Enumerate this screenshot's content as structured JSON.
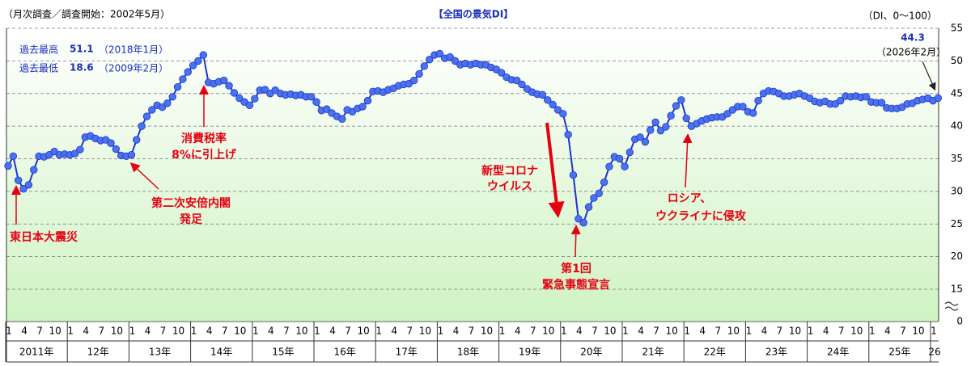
{
  "chart_data": {
    "type": "line",
    "subtitle": "（月次調査／調査開始：2002年5月）",
    "title": "【全国の景気DI】",
    "unit_label": "（DI、0～100）",
    "categories": [
      "2011-01",
      "2011-02",
      "2011-03",
      "2011-04",
      "2011-05",
      "2011-06",
      "2011-07",
      "2011-08",
      "2011-09",
      "2011-10",
      "2011-11",
      "2011-12",
      "2012-01",
      "2012-02",
      "2012-03",
      "2012-04",
      "2012-05",
      "2012-06",
      "2012-07",
      "2012-08",
      "2012-09",
      "2012-10",
      "2012-11",
      "2012-12",
      "2013-01",
      "2013-02",
      "2013-03",
      "2013-04",
      "2013-05",
      "2013-06",
      "2013-07",
      "2013-08",
      "2013-09",
      "2013-10",
      "2013-11",
      "2013-12",
      "2014-01",
      "2014-02",
      "2014-03",
      "2014-04",
      "2014-05",
      "2014-06",
      "2014-07",
      "2014-08",
      "2014-09",
      "2014-10",
      "2014-11",
      "2014-12",
      "2015-01",
      "2015-02",
      "2015-03",
      "2015-04",
      "2015-05",
      "2015-06",
      "2015-07",
      "2015-08",
      "2015-09",
      "2015-10",
      "2015-11",
      "2015-12",
      "2016-01",
      "2016-02",
      "2016-03",
      "2016-04",
      "2016-05",
      "2016-06",
      "2016-07",
      "2016-08",
      "2016-09",
      "2016-10",
      "2016-11",
      "2016-12",
      "2017-01",
      "2017-02",
      "2017-03",
      "2017-04",
      "2017-05",
      "2017-06",
      "2017-07",
      "2017-08",
      "2017-09",
      "2017-10",
      "2017-11",
      "2017-12",
      "2018-01",
      "2018-02",
      "2018-03",
      "2018-04",
      "2018-05",
      "2018-06",
      "2018-07",
      "2018-08",
      "2018-09",
      "2018-10",
      "2018-11",
      "2018-12",
      "2019-01",
      "2019-02",
      "2019-03",
      "2019-04",
      "2019-05",
      "2019-06",
      "2019-07",
      "2019-08",
      "2019-09",
      "2019-10",
      "2019-11",
      "2019-12",
      "2020-01",
      "2020-02",
      "2020-03",
      "2020-04",
      "2020-05",
      "2020-06",
      "2020-07",
      "2020-08",
      "2020-09",
      "2020-10",
      "2020-11",
      "2020-12",
      "2021-01",
      "2021-02",
      "2021-03",
      "2021-04",
      "2021-05",
      "2021-06",
      "2021-07",
      "2021-08",
      "2021-09",
      "2021-10",
      "2021-11",
      "2021-12",
      "2022-01",
      "2022-02",
      "2022-03",
      "2022-04",
      "2022-05",
      "2022-06",
      "2022-07",
      "2022-08",
      "2022-09",
      "2022-10",
      "2022-11",
      "2022-12",
      "2023-01",
      "2023-02",
      "2023-03",
      "2023-04",
      "2023-05",
      "2023-06",
      "2023-07",
      "2023-08",
      "2023-09",
      "2023-10",
      "2023-11",
      "2023-12",
      "2024-01",
      "2024-02",
      "2024-03",
      "2024-04",
      "2024-05",
      "2024-06",
      "2024-07",
      "2024-08",
      "2024-09",
      "2024-10",
      "2024-11",
      "2024-12",
      "2025-01",
      "2025-02",
      "2025-03",
      "2025-04",
      "2025-05",
      "2025-06",
      "2025-07",
      "2025-08",
      "2025-09",
      "2025-10",
      "2025-11",
      "2025-12",
      "2026-01",
      "2026-02"
    ],
    "values": [
      33.9,
      35.4,
      31.7,
      30.4,
      31.0,
      33.3,
      35.4,
      35.3,
      35.6,
      36.1,
      35.6,
      35.7,
      35.6,
      35.8,
      36.4,
      38.3,
      38.5,
      38.1,
      37.8,
      37.9,
      37.4,
      36.5,
      35.5,
      35.4,
      35.6,
      37.9,
      40.0,
      41.5,
      42.5,
      43.2,
      42.9,
      43.5,
      44.5,
      46.0,
      47.2,
      48.3,
      49.3,
      50.0,
      50.9,
      46.7,
      46.5,
      46.8,
      47.0,
      46.2,
      45.1,
      44.3,
      43.7,
      43.2,
      44.2,
      45.5,
      45.6,
      45.0,
      45.5,
      45.0,
      44.8,
      44.9,
      44.7,
      44.8,
      44.5,
      44.5,
      43.7,
      42.4,
      42.6,
      42.0,
      41.5,
      41.1,
      42.5,
      42.2,
      42.7,
      43.0,
      43.9,
      45.3,
      45.4,
      45.2,
      45.6,
      45.8,
      46.2,
      46.4,
      46.5,
      47.0,
      48.0,
      49.2,
      50.2,
      50.9,
      51.1,
      50.4,
      50.6,
      50.0,
      49.4,
      49.6,
      49.4,
      49.6,
      49.4,
      49.4,
      49.0,
      48.7,
      48.2,
      47.5,
      47.1,
      47.0,
      46.4,
      45.7,
      45.2,
      44.9,
      44.8,
      44.0,
      43.3,
      42.5,
      41.9,
      38.7,
      32.5,
      25.8,
      25.2,
      27.6,
      29.0,
      29.7,
      31.4,
      33.8,
      35.3,
      35.0,
      33.8,
      36.0,
      38.0,
      38.3,
      37.6,
      39.4,
      40.6,
      39.3,
      39.9,
      41.6,
      43.1,
      44.0,
      41.2,
      40.0,
      40.4,
      40.8,
      41.1,
      41.3,
      41.4,
      41.4,
      41.9,
      42.5,
      43.0,
      43.0,
      42.2,
      42.0,
      43.9,
      45.0,
      45.4,
      45.3,
      45.0,
      44.6,
      44.6,
      44.8,
      45.0,
      44.6,
      44.3,
      43.8,
      43.6,
      43.8,
      43.4,
      43.4,
      43.9,
      44.6,
      44.5,
      44.6,
      44.4,
      44.5,
      43.7,
      43.6,
      43.6,
      42.8,
      42.7,
      42.7,
      42.9,
      43.4,
      43.5,
      43.9,
      44.1,
      44.3,
      43.9,
      44.3
    ],
    "line_color": "#1f35c8",
    "marker_color": "#4a72ee",
    "ylim": [
      0,
      55
    ],
    "yticks": [
      0,
      15,
      20,
      25,
      30,
      35,
      40,
      45,
      50,
      55
    ],
    "axis_break": true,
    "grid": true,
    "month_ticks": [
      "1",
      "4",
      "7",
      "10"
    ],
    "year_labels": [
      "2011年",
      "12年",
      "13年",
      "14年",
      "15年",
      "16年",
      "17年",
      "18年",
      "19年",
      "20年",
      "21年",
      "22年",
      "23年",
      "24年",
      "25年",
      "26"
    ],
    "record_high": {
      "label": "過去最高",
      "value": 51.1,
      "date": "（2018年1月）"
    },
    "record_low": {
      "label": "過去最低",
      "value": 18.6,
      "date": "（2009年2月）"
    },
    "latest_date": "（2026年2月）",
    "annotations": [
      [
        "東日本大震災"
      ],
      [
        "第二次安倍内閣",
        "発足"
      ],
      [
        "消費税率",
        "8%に引上げ"
      ],
      [
        "新型コロナ",
        "ウイルス"
      ],
      [
        "第1回",
        "緊急事態宣言"
      ],
      [
        "ロシア、",
        "ウクライナに侵攻"
      ]
    ]
  }
}
